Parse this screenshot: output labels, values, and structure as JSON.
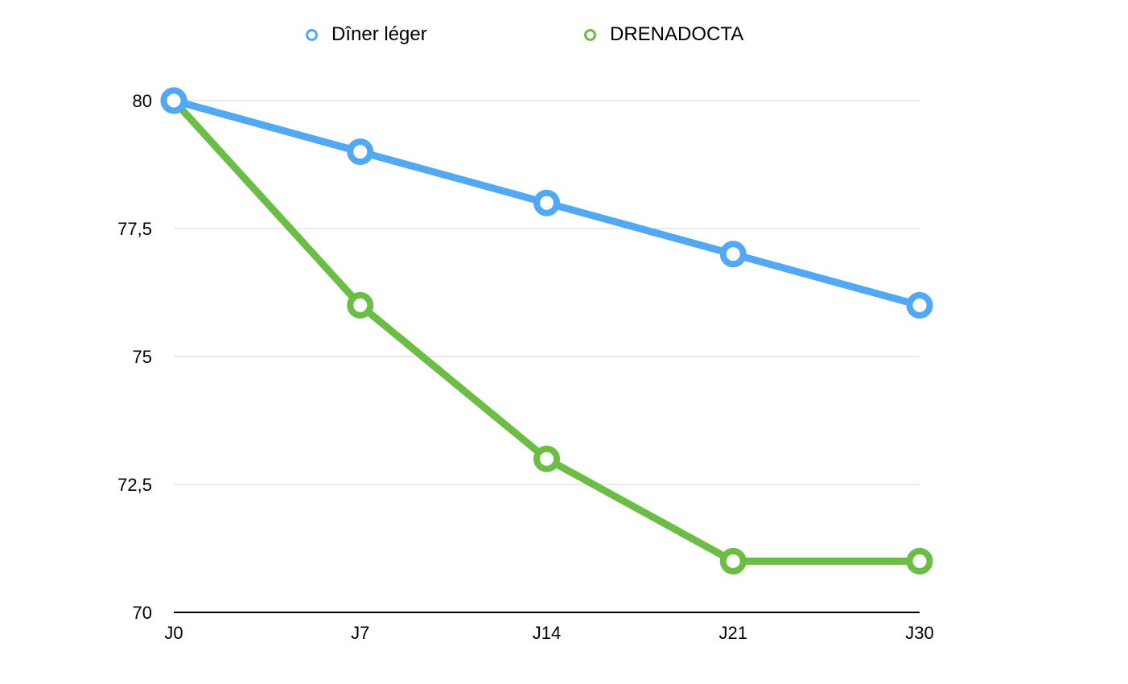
{
  "chart_data": {
    "type": "line",
    "categories": [
      "J0",
      "J7",
      "J14",
      "J21",
      "J30"
    ],
    "series": [
      {
        "name": "Dîner léger",
        "color": "#52a8f2",
        "values": [
          80,
          79,
          78,
          77,
          76
        ]
      },
      {
        "name": "DRENADOCTA",
        "color": "#6cbd45",
        "values": [
          80,
          76,
          73,
          71,
          71
        ]
      }
    ],
    "ylim": [
      70,
      80
    ],
    "yticks": [
      70,
      72.5,
      75,
      77.5,
      80
    ],
    "ytick_labels": [
      "70",
      "72,5",
      "75",
      "77,5",
      "80"
    ],
    "grid": true,
    "legend": "top-center"
  }
}
